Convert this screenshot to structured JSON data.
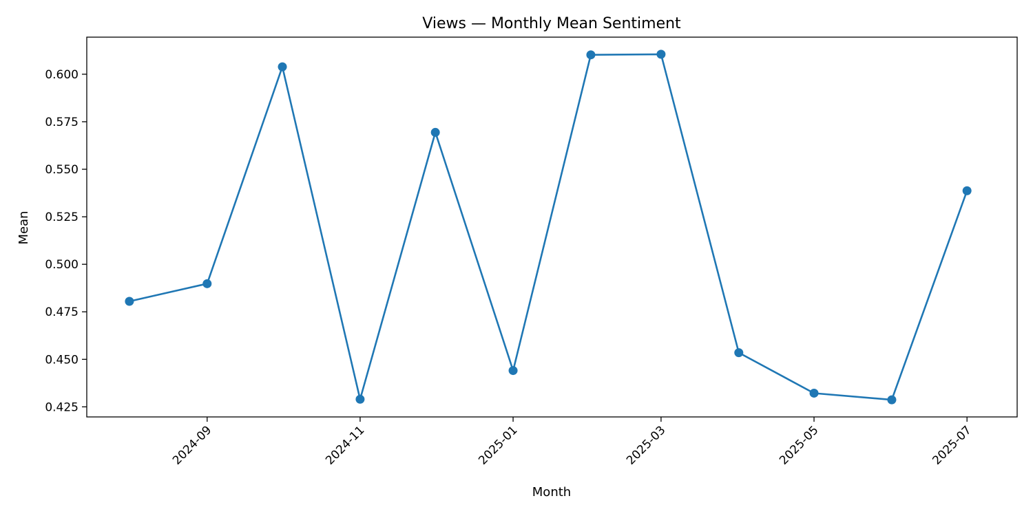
{
  "chart_data": {
    "type": "line",
    "title": "Views — Monthly Mean Sentiment",
    "xlabel": "Month",
    "ylabel": "Mean",
    "x": [
      "2024-08",
      "2024-09",
      "2024-10",
      "2024-11",
      "2024-12",
      "2025-01",
      "2025-02",
      "2025-03",
      "2025-04",
      "2025-05",
      "2025-06",
      "2025-07"
    ],
    "series": [
      {
        "values": [
          0.4805,
          0.4898,
          0.6039,
          0.429,
          0.5694,
          0.4441,
          0.6102,
          0.6105,
          0.4535,
          0.4322,
          0.4287,
          0.5387
        ],
        "color": "#1f77b4"
      }
    ],
    "x_ticks": [
      "2024-09",
      "2024-11",
      "2025-01",
      "2025-03",
      "2025-05",
      "2025-07"
    ],
    "y_ticks": [
      "0.425",
      "0.450",
      "0.475",
      "0.500",
      "0.525",
      "0.550",
      "0.575",
      "0.600"
    ],
    "xlim": [
      "2024-07-15",
      "2025-07-21"
    ],
    "ylim": [
      0.4197,
      0.6195
    ],
    "grid": false,
    "markers": "circle"
  }
}
